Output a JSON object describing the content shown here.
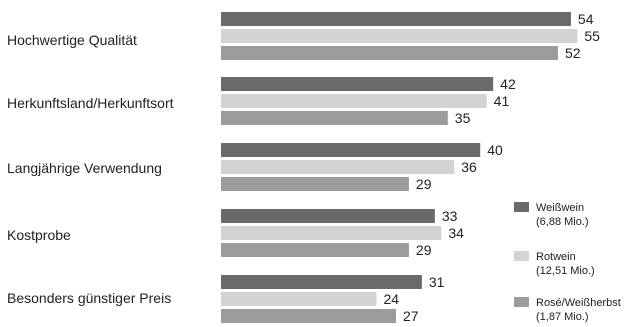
{
  "chart_data": {
    "type": "bar",
    "orientation": "horizontal",
    "categories": [
      "Hochwertige Qualität",
      "Herkunftsland/Herkunftsort",
      "Langjährige Verwendung",
      "Kostprobe",
      "Besonders günstiger Preis"
    ],
    "series": [
      {
        "name": "Weißwein",
        "name_line2": "(6,88 Mio.)",
        "color": "#6a6a6a",
        "values": [
          54,
          42,
          40,
          33,
          31
        ]
      },
      {
        "name": "Rotwein",
        "name_line2": "(12,51 Mio.)",
        "color": "#d3d3d3",
        "values": [
          55,
          41,
          36,
          34,
          24
        ]
      },
      {
        "name": "Rosé/Weißherbst",
        "name_line2": "(1,87 Mio.)",
        "color": "#9b9b9b",
        "values": [
          52,
          35,
          29,
          29,
          27
        ]
      }
    ],
    "title": "",
    "xlabel": "",
    "ylabel": "",
    "grid": false,
    "legend_position": "right"
  }
}
